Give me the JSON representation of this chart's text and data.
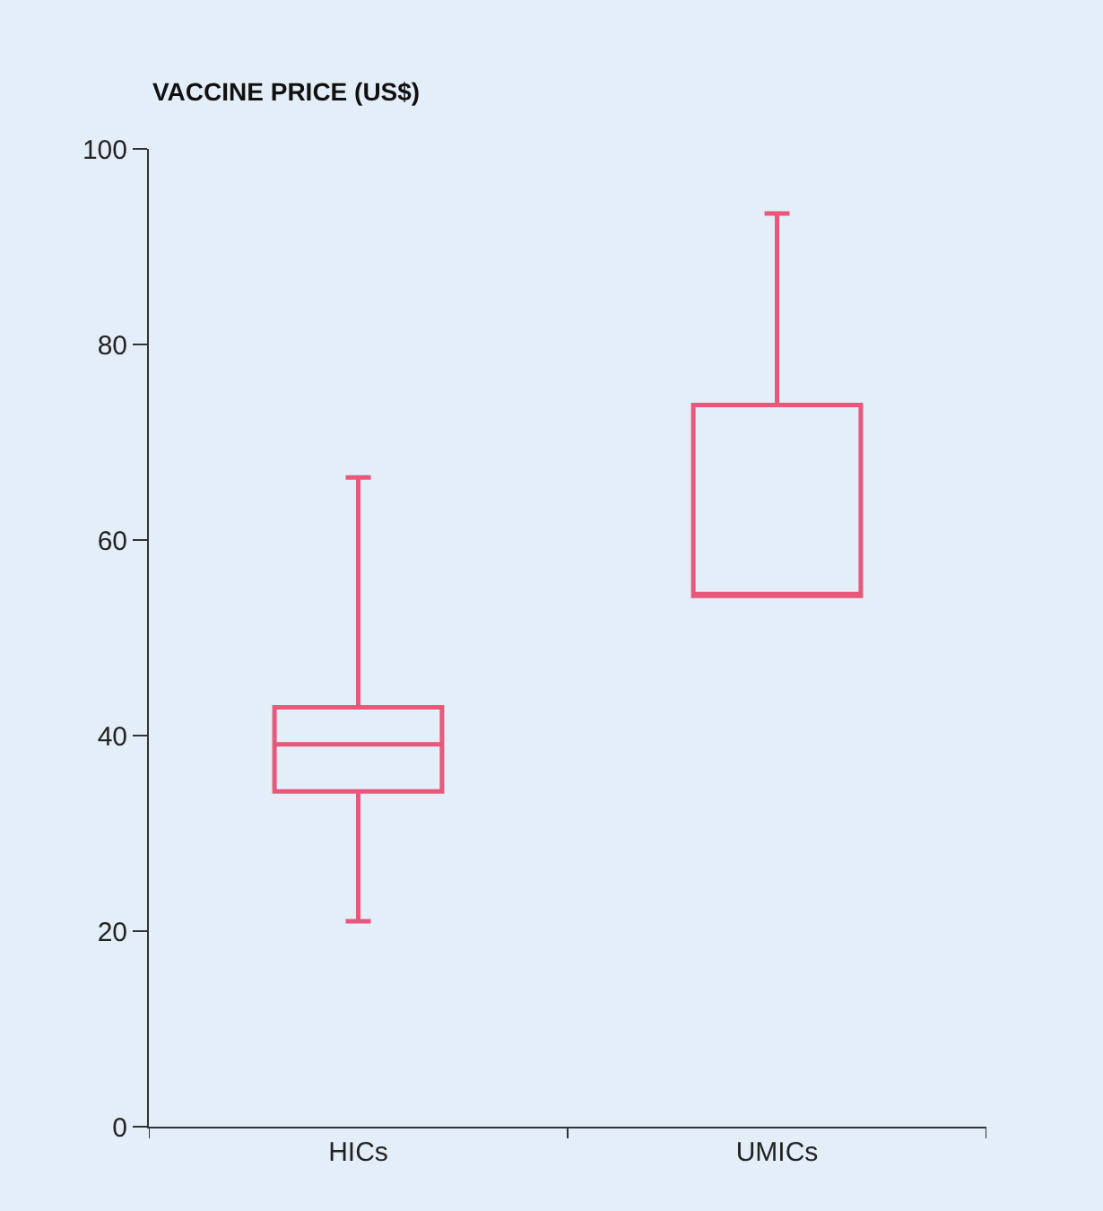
{
  "chart_data": {
    "type": "box",
    "ylabel": "VACCINE PRICE (US$)",
    "categories": [
      "HICs",
      "UMICs"
    ],
    "boxes": [
      {
        "low": 21,
        "q1": 34.3,
        "median": 39.1,
        "q3": 42.9,
        "high": 66.4
      },
      {
        "low": 54.3,
        "q1": 54.3,
        "median": 54.3,
        "q3": 73.8,
        "high": 93.4
      }
    ],
    "color": "#e8587a",
    "ylim": [
      0,
      100
    ],
    "yticks": [
      0,
      20,
      40,
      60,
      80,
      100
    ],
    "grid": false,
    "legend": false
  }
}
